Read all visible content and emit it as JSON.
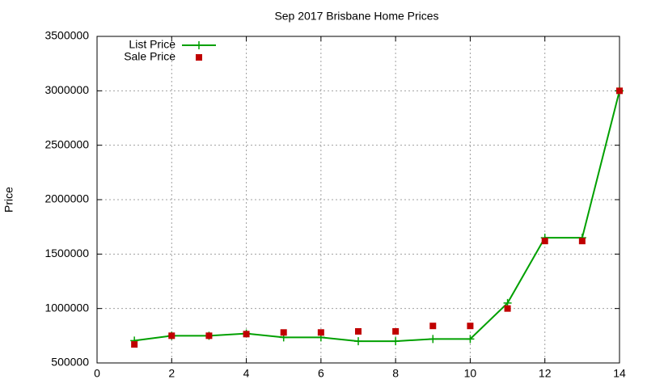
{
  "chart_data": {
    "type": "line",
    "title": "Sep 2017 Brisbane Home Prices",
    "y_label": "Price",
    "x": [
      1,
      2,
      3,
      4,
      5,
      6,
      7,
      8,
      9,
      10,
      11,
      12,
      13,
      14
    ],
    "series": [
      {
        "name": "List Price",
        "color": "#00a000",
        "style": "linespoints",
        "values": [
          705000,
          750000,
          750000,
          770000,
          735000,
          735000,
          700000,
          700000,
          720000,
          720000,
          1050000,
          1650000,
          1650000,
          3000000
        ]
      },
      {
        "name": "Sale Price",
        "color": "#c00000",
        "style": "points",
        "values": [
          670000,
          750000,
          750000,
          765000,
          780000,
          780000,
          790000,
          790000,
          840000,
          840000,
          1000000,
          1620000,
          1620000,
          3000000
        ]
      }
    ],
    "xlim": [
      0,
      14
    ],
    "xticks": [
      0,
      2,
      4,
      6,
      8,
      10,
      12,
      14
    ],
    "ylim": [
      500000,
      3500000
    ],
    "yticks": [
      500000,
      1000000,
      1500000,
      2000000,
      2500000,
      3000000,
      3500000
    ],
    "grid": true,
    "legend": "top-left"
  }
}
